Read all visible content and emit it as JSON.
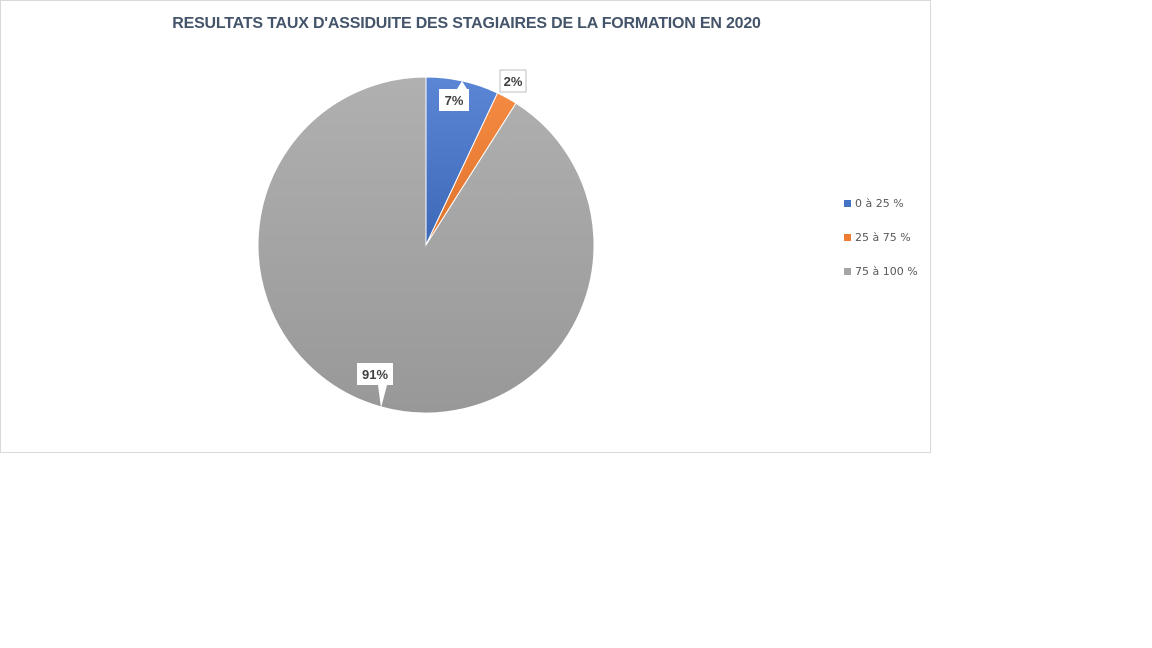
{
  "chart_data": {
    "type": "pie",
    "title": "RESULTATS TAUX D'ASSIDUITE DES STAGIAIRES DE LA FORMATION EN 2020",
    "slices": [
      {
        "label": "0 à 25 %",
        "value": 7,
        "data_label": "7%",
        "color": "#4472c4"
      },
      {
        "label": "25 à 75 %",
        "value": 2,
        "data_label": "2%",
        "color": "#ed7d31"
      },
      {
        "label": "75 à 100 %",
        "value": 91,
        "data_label": "91%",
        "color": "#a5a5a5"
      }
    ],
    "legend_position": "right"
  }
}
